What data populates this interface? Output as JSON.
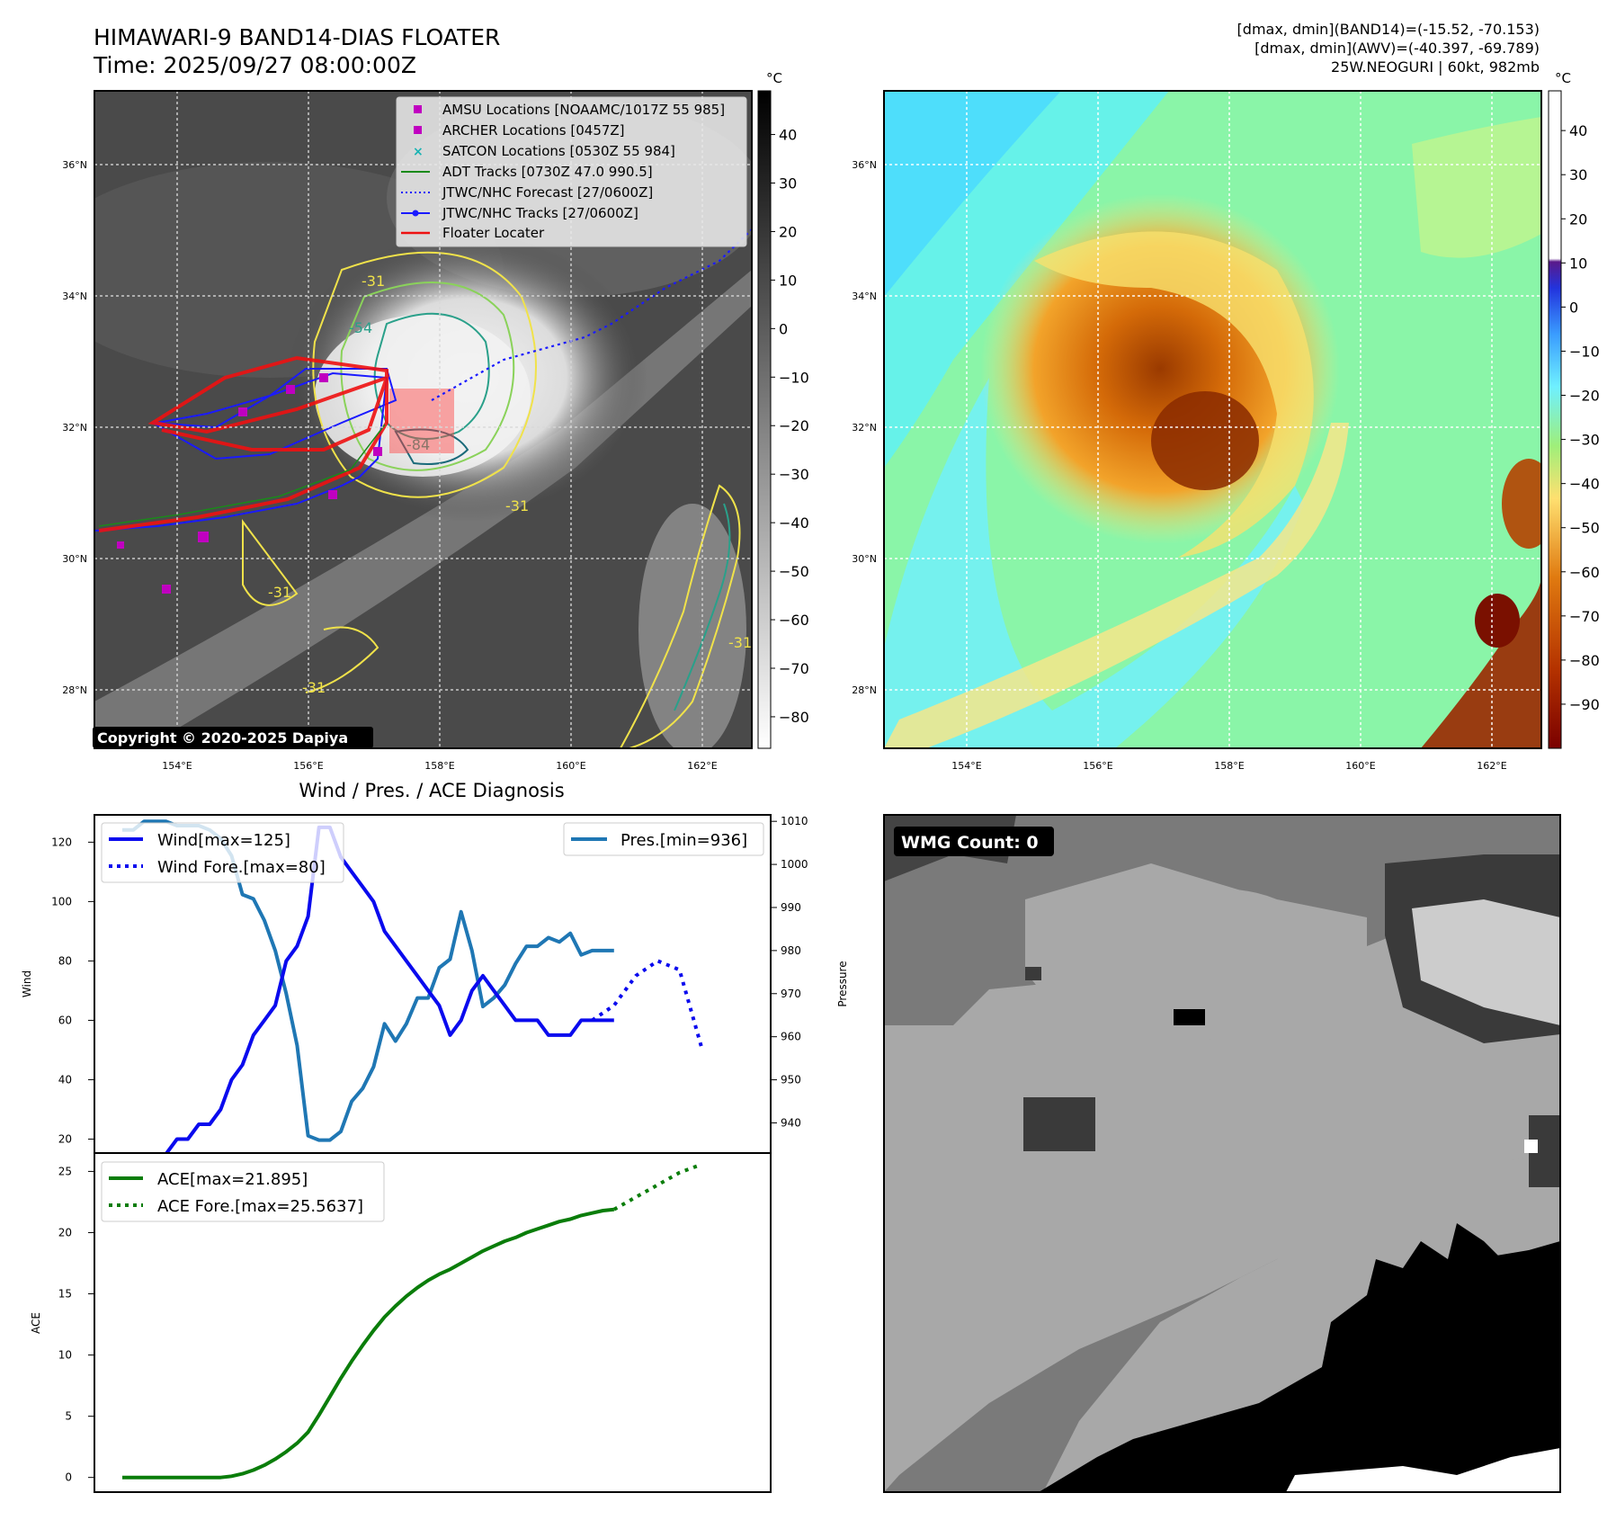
{
  "header": {
    "title_line1": "HIMAWARI-9 BAND14-DIAS FLOATER",
    "title_line2": "Time: 2025/09/27 08:00:00Z",
    "info_line1": "[dmax, dmin](BAND14)=(-15.52, -70.153)",
    "info_line2": "[dmax, dmin](AWV)=(-40.397, -69.789)",
    "info_line3": "25W.NEOGURI | 60kt, 982mb"
  },
  "map_axes": {
    "lat_labels": [
      "36°N",
      "34°N",
      "32°N",
      "30°N",
      "28°N"
    ],
    "lon_labels": [
      "154°E",
      "156°E",
      "158°E",
      "160°E",
      "162°E"
    ]
  },
  "ir_panel": {
    "copyright": "Copyright © 2020-2025 Dapiya",
    "contour_labels": [
      "-31",
      "-54",
      "-84",
      "-31",
      "-31",
      "-31",
      "-31"
    ],
    "colorbar_unit": "°C",
    "colorbar_ticks": [
      "40",
      "30",
      "20",
      "10",
      "0",
      "−10",
      "−20",
      "−30",
      "−40",
      "−50",
      "−60",
      "−70",
      "−80"
    ],
    "legend": [
      {
        "label": "AMSU Locations [NOAAMC/1017Z 55 985]",
        "marker": "square",
        "color": "#c000c0"
      },
      {
        "label": "ARCHER Locations [0457Z]",
        "marker": "square",
        "color": "#c000c0"
      },
      {
        "label": "SATCON Locations [0530Z 55 984]",
        "marker": "x",
        "color": "#19b3b3"
      },
      {
        "label": "ADT Tracks [0730Z 47.0 990.5]",
        "marker": "line",
        "color": "#1a8a1a"
      },
      {
        "label": "JTWC/NHC Forecast [27/0600Z]",
        "marker": "dotted",
        "color": "#1a1aff"
      },
      {
        "label": "JTWC/NHC Tracks [27/0600Z]",
        "marker": "line-dot",
        "color": "#1a1aff"
      },
      {
        "label": "Floater Locater",
        "marker": "line",
        "color": "#ee1111"
      }
    ]
  },
  "wv_panel": {
    "colorbar_unit": "°C",
    "colorbar_ticks": [
      "40",
      "30",
      "20",
      "10",
      "0",
      "−10",
      "−20",
      "−30",
      "−40",
      "−50",
      "−60",
      "−70",
      "−80",
      "−90"
    ]
  },
  "wmg_panel": {
    "label": "WMG Count: 0"
  },
  "diag_title": "Wind / Pres. / ACE Diagnosis",
  "colors": {
    "wind": "#0a0aee",
    "pressure": "#1f77b4",
    "ace": "#0a7d0a"
  },
  "chart_data": [
    {
      "type": "line",
      "title": "Wind / Pres. / ACE Diagnosis",
      "ylabel": "Wind",
      "y2label": "Pressure",
      "ylim": [
        15.3,
        129.2
      ],
      "y2lim": [
        933,
        1011.5
      ],
      "yticks": [
        20,
        40,
        60,
        80,
        100,
        120
      ],
      "y2ticks": [
        940,
        950,
        960,
        970,
        980,
        990,
        1000,
        1010
      ],
      "x_points": 55,
      "series": [
        {
          "name": "Wind[max=125]",
          "axis": "left",
          "x": [
            0,
            1,
            2,
            3,
            4,
            5,
            6,
            7,
            8,
            9,
            10,
            11,
            12,
            13,
            14,
            15,
            16,
            17,
            18,
            19,
            20,
            21,
            22,
            23,
            24,
            25,
            26,
            27,
            28,
            29,
            30,
            31,
            32,
            33,
            34,
            35,
            36,
            37,
            38,
            39,
            40,
            41,
            42,
            43,
            44,
            45
          ],
          "values": [
            15,
            15,
            15,
            15,
            15,
            20,
            20,
            25,
            25,
            30,
            40,
            45,
            55,
            60,
            65,
            80,
            85,
            95,
            125,
            125,
            115,
            110,
            105,
            100,
            90,
            85,
            80,
            75,
            70,
            65,
            55,
            60,
            70,
            75,
            70,
            65,
            60,
            60,
            60,
            55,
            55,
            55,
            60,
            60,
            60,
            60
          ]
        },
        {
          "name": "Wind Fore.[max=80]",
          "axis": "left",
          "x": [
            43,
            45,
            47,
            49,
            51,
            53
          ],
          "values": [
            60,
            65,
            75,
            80,
            77,
            51
          ]
        },
        {
          "name": "Pres.[min=936]",
          "axis": "right",
          "x": [
            0,
            1,
            2,
            3,
            4,
            5,
            6,
            7,
            8,
            9,
            10,
            11,
            12,
            13,
            14,
            15,
            16,
            17,
            18,
            19,
            20,
            21,
            22,
            23,
            24,
            25,
            26,
            27,
            28,
            29,
            30,
            31,
            32,
            33,
            34,
            35,
            36,
            37,
            38,
            39,
            40,
            41,
            42,
            43,
            44,
            45
          ],
          "values": [
            1008,
            1008,
            1010,
            1010,
            1010,
            1009,
            1009,
            1009,
            1008,
            1006,
            1002,
            993,
            992,
            987,
            980,
            970,
            958,
            937,
            936,
            936,
            938,
            945,
            948,
            953,
            963,
            959,
            963,
            969,
            969,
            976,
            978,
            989,
            980,
            967,
            969,
            972,
            977,
            981,
            981,
            983,
            982,
            984,
            979,
            980,
            980,
            980
          ]
        },
        {
          "name": "ACE[max=21.895]",
          "axis": "ace",
          "x": [
            0,
            1,
            2,
            3,
            4,
            5,
            6,
            7,
            8,
            9,
            10,
            11,
            12,
            13,
            14,
            15,
            16,
            17,
            18,
            19,
            20,
            21,
            22,
            23,
            24,
            25,
            26,
            27,
            28,
            29,
            30,
            31,
            32,
            33,
            34,
            35,
            36,
            37,
            38,
            39,
            40,
            41,
            42,
            43,
            44,
            45
          ],
          "values": [
            0,
            0,
            0,
            0,
            0,
            0,
            0,
            0,
            0,
            0,
            0.1,
            0.3,
            0.6,
            1.0,
            1.5,
            2.1,
            2.8,
            3.7,
            5.1,
            6.6,
            8.1,
            9.5,
            10.8,
            12.0,
            13.1,
            14.0,
            14.8,
            15.5,
            16.1,
            16.6,
            17.0,
            17.5,
            18.0,
            18.5,
            18.9,
            19.3,
            19.6,
            20.0,
            20.3,
            20.6,
            20.9,
            21.1,
            21.4,
            21.6,
            21.8,
            21.895
          ]
        },
        {
          "name": "ACE Fore.[max=25.5637]",
          "axis": "ace",
          "x": [
            45,
            47,
            49,
            51,
            53
          ],
          "values": [
            21.895,
            22.9,
            23.9,
            24.9,
            25.5637
          ]
        }
      ],
      "ace_axis": {
        "ylabel": "ACE",
        "ylim": [
          -1.2,
          26.5
        ],
        "yticks": [
          0,
          5,
          10,
          15,
          20,
          25
        ]
      }
    }
  ]
}
